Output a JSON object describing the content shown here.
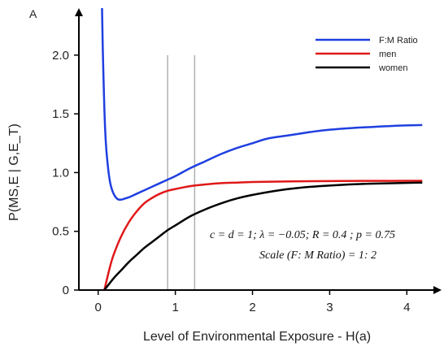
{
  "chart_data": {
    "type": "line",
    "panel_label": "A",
    "xlabel": "Level of Environmental Exposure - H(a)",
    "ylabel": "P(MS,E | G,E_T)",
    "xlim": [
      -0.25,
      4.45
    ],
    "ylim": [
      0,
      2.4
    ],
    "xticks": [
      0,
      1,
      2,
      3,
      4
    ],
    "yticks": [
      0,
      0.5,
      1.0,
      1.5,
      2.0
    ],
    "ytick_labels": [
      "0",
      "0.5",
      "1.0",
      "1.5",
      "2.0"
    ],
    "grid": false,
    "legend_position": "top-right",
    "vertical_lines": [
      0.9,
      1.25
    ],
    "vertical_line_color": "#b0b0b0",
    "annotations": [
      "c = d = 1;  λ = −0.05;  R = 0.4 ; p = 0.75",
      "Scale (F: M Ratio) = 1: 2"
    ],
    "series": [
      {
        "name": "F:M Ratio",
        "color": "#1f3fe0",
        "x": [
          0.05,
          0.06,
          0.08,
          0.1,
          0.13,
          0.16,
          0.2,
          0.25,
          0.3,
          0.35,
          0.4,
          0.5,
          0.6,
          0.7,
          0.8,
          0.9,
          1.0,
          1.2,
          1.4,
          1.6,
          1.8,
          2.0,
          2.2,
          2.5,
          2.8,
          3.0,
          3.3,
          3.6,
          3.9,
          4.2
        ],
        "y": [
          2.4,
          2.05,
          1.55,
          1.25,
          1.03,
          0.9,
          0.82,
          0.775,
          0.77,
          0.78,
          0.79,
          0.82,
          0.85,
          0.88,
          0.91,
          0.94,
          0.97,
          1.04,
          1.1,
          1.16,
          1.21,
          1.25,
          1.29,
          1.32,
          1.35,
          1.365,
          1.38,
          1.39,
          1.4,
          1.405
        ]
      },
      {
        "name": "men",
        "color": "#e01818",
        "x": [
          0.08,
          0.15,
          0.2,
          0.3,
          0.4,
          0.5,
          0.6,
          0.7,
          0.8,
          0.9,
          1.0,
          1.2,
          1.4,
          1.6,
          1.8,
          2.0,
          2.5,
          3.0,
          3.5,
          4.2
        ],
        "y": [
          0,
          0.19,
          0.3,
          0.46,
          0.58,
          0.67,
          0.74,
          0.785,
          0.82,
          0.845,
          0.86,
          0.885,
          0.9,
          0.91,
          0.915,
          0.92,
          0.925,
          0.928,
          0.929,
          0.93
        ]
      },
      {
        "name": "women",
        "color": "#000000",
        "x": [
          0.08,
          0.2,
          0.3,
          0.4,
          0.5,
          0.6,
          0.7,
          0.8,
          0.9,
          1.0,
          1.2,
          1.4,
          1.6,
          1.8,
          2.0,
          2.3,
          2.6,
          3.0,
          3.5,
          4.2
        ],
        "y": [
          0,
          0.1,
          0.17,
          0.24,
          0.3,
          0.36,
          0.41,
          0.46,
          0.51,
          0.55,
          0.63,
          0.69,
          0.74,
          0.78,
          0.81,
          0.845,
          0.87,
          0.89,
          0.905,
          0.915
        ]
      }
    ]
  }
}
